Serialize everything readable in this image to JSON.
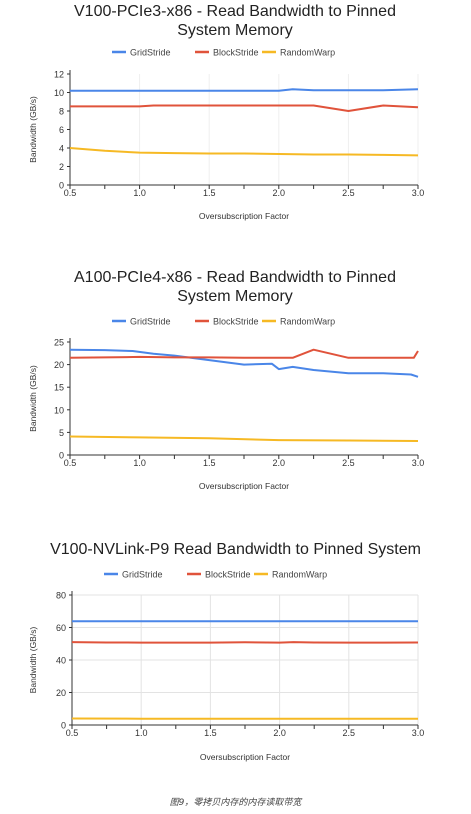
{
  "chart_data": [
    {
      "type": "line",
      "title": "V100-PCIe3-x86 - Read Bandwidth to Pinned System Memory",
      "xlabel": "Oversubscription Factor",
      "ylabel": "Bandwidth (GB/s)",
      "xlim": [
        0.5,
        3.0
      ],
      "ylim": [
        0,
        12
      ],
      "x_ticks": [
        "0.5",
        "1.0",
        "1.5",
        "2.0",
        "2.5",
        "3.0"
      ],
      "y_ticks": [
        "0",
        "2",
        "4",
        "6",
        "8",
        "10",
        "12"
      ],
      "grid": "vertical-only-light",
      "legend_position": "top",
      "series": [
        {
          "name": "GridStride",
          "color": "#4a86e8",
          "x": [
            0.5,
            0.75,
            1.0,
            1.25,
            1.5,
            1.75,
            2.0,
            2.1,
            2.25,
            2.5,
            2.75,
            3.0
          ],
          "y": [
            10.2,
            10.2,
            10.2,
            10.2,
            10.2,
            10.2,
            10.2,
            10.35,
            10.25,
            10.25,
            10.25,
            10.35
          ]
        },
        {
          "name": "BlockStride",
          "color": "#e0533b",
          "x": [
            0.5,
            0.75,
            1.0,
            1.1,
            1.25,
            1.5,
            1.75,
            2.0,
            2.25,
            2.5,
            2.75,
            3.0
          ],
          "y": [
            8.5,
            8.5,
            8.5,
            8.6,
            8.6,
            8.6,
            8.6,
            8.6,
            8.6,
            8.0,
            8.6,
            8.4
          ]
        },
        {
          "name": "RandomWarp",
          "color": "#f6b924",
          "x": [
            0.5,
            0.75,
            1.0,
            1.25,
            1.5,
            1.75,
            2.0,
            2.25,
            2.5,
            2.75,
            3.0
          ],
          "y": [
            4.0,
            3.7,
            3.5,
            3.45,
            3.4,
            3.4,
            3.35,
            3.3,
            3.3,
            3.25,
            3.2
          ]
        }
      ]
    },
    {
      "type": "line",
      "title": "A100-PCIe4-x86 - Read Bandwidth to Pinned System Memory",
      "xlabel": "Oversubscription Factor",
      "ylabel": "Bandwidth (GB/s)",
      "xlim": [
        0.5,
        3.0
      ],
      "ylim": [
        0,
        25
      ],
      "x_ticks": [
        "0.5",
        "1.0",
        "1.5",
        "2.0",
        "2.5",
        "3.0"
      ],
      "y_ticks": [
        "0",
        "5",
        "10",
        "15",
        "20",
        "25"
      ],
      "grid": "none",
      "legend_position": "top",
      "series": [
        {
          "name": "GridStride",
          "color": "#4a86e8",
          "x": [
            0.5,
            0.75,
            0.95,
            1.1,
            1.25,
            1.5,
            1.75,
            1.95,
            2.0,
            2.1,
            2.25,
            2.5,
            2.75,
            2.95,
            3.0
          ],
          "y": [
            23.3,
            23.2,
            23.0,
            22.4,
            22.0,
            21.0,
            20.0,
            20.2,
            19.0,
            19.5,
            18.8,
            18.1,
            18.1,
            17.8,
            17.3
          ]
        },
        {
          "name": "BlockStride",
          "color": "#e0533b",
          "x": [
            0.5,
            0.75,
            1.0,
            1.25,
            1.5,
            1.75,
            2.0,
            2.1,
            2.25,
            2.5,
            2.75,
            2.97,
            3.0
          ],
          "y": [
            21.5,
            21.6,
            21.7,
            21.6,
            21.6,
            21.5,
            21.5,
            21.5,
            23.3,
            21.5,
            21.5,
            21.5,
            23.0
          ]
        },
        {
          "name": "RandomWarp",
          "color": "#f6b924",
          "x": [
            0.5,
            1.0,
            1.5,
            2.0,
            2.5,
            3.0
          ],
          "y": [
            4.1,
            3.9,
            3.7,
            3.3,
            3.2,
            3.1
          ]
        }
      ]
    },
    {
      "type": "line",
      "title": "V100-NVLink-P9 Read Bandwidth to Pinned System",
      "xlabel": "Oversubscription Factor",
      "ylabel": "Bandwidth (GB/s)",
      "xlim": [
        0.5,
        3.0
      ],
      "ylim": [
        0,
        80
      ],
      "x_ticks": [
        "0.5",
        "1.0",
        "1.5",
        "2.0",
        "2.5",
        "3.0"
      ],
      "y_ticks": [
        "0",
        "20",
        "40",
        "60",
        "80"
      ],
      "grid": "both",
      "legend_position": "top",
      "series": [
        {
          "name": "GridStride",
          "color": "#4a86e8",
          "x": [
            0.5,
            1.0,
            1.5,
            2.0,
            2.5,
            3.0
          ],
          "y": [
            63.8,
            63.8,
            63.8,
            63.8,
            63.8,
            63.8
          ]
        },
        {
          "name": "BlockStride",
          "color": "#e0533b",
          "x": [
            0.5,
            0.75,
            1.0,
            1.25,
            1.5,
            1.75,
            2.0,
            2.1,
            2.25,
            2.5,
            2.75,
            3.0
          ],
          "y": [
            51.0,
            50.8,
            50.7,
            50.7,
            50.7,
            50.9,
            50.7,
            51.0,
            50.8,
            50.7,
            50.7,
            50.8
          ]
        },
        {
          "name": "RandomWarp",
          "color": "#f6b924",
          "x": [
            0.5,
            1.0,
            1.5,
            2.0,
            2.5,
            3.0
          ],
          "y": [
            4.0,
            3.9,
            3.9,
            3.9,
            3.9,
            3.9
          ]
        }
      ]
    }
  ],
  "figure_caption": "图9，零拷贝内存的内存读取带宽"
}
